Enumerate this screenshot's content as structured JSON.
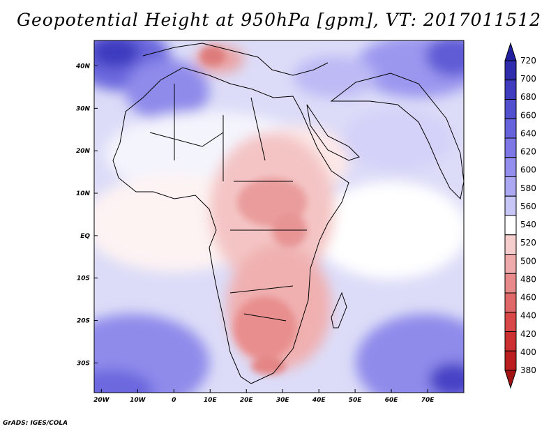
{
  "title": "Geopotential Height at 950hPa [gpm], VT: 2017011512",
  "credit": "GrADS: IGES/COLA",
  "map": {
    "region": "Africa",
    "lon_range": [
      -22,
      80
    ],
    "lat_range": [
      -37,
      46
    ],
    "x_ticks": [
      {
        "label": "20W",
        "value": -20
      },
      {
        "label": "10W",
        "value": -10
      },
      {
        "label": "0",
        "value": 0
      },
      {
        "label": "10E",
        "value": 10
      },
      {
        "label": "20E",
        "value": 20
      },
      {
        "label": "30E",
        "value": 30
      },
      {
        "label": "40E",
        "value": 40
      },
      {
        "label": "50E",
        "value": 50
      },
      {
        "label": "60E",
        "value": 60
      },
      {
        "label": "70E",
        "value": 70
      }
    ],
    "y_ticks": [
      {
        "label": "40N",
        "value": 40
      },
      {
        "label": "30N",
        "value": 30
      },
      {
        "label": "20N",
        "value": 20
      },
      {
        "label": "10N",
        "value": 10
      },
      {
        "label": "EQ",
        "value": 0
      },
      {
        "label": "10S",
        "value": -10
      },
      {
        "label": "20S",
        "value": -20
      },
      {
        "label": "30S",
        "value": -30
      }
    ]
  },
  "colorbar": {
    "levels": [
      "720",
      "700",
      "680",
      "660",
      "640",
      "620",
      "600",
      "580",
      "560",
      "540",
      "520",
      "500",
      "480",
      "460",
      "440",
      "420",
      "400",
      "380"
    ],
    "colors": [
      "#211f9c",
      "#2f2cae",
      "#3f3cc0",
      "#5250cf",
      "#6763dc",
      "#7d78e6",
      "#948fee",
      "#aca8f3",
      "#c8c6f7",
      "#ffffff",
      "#f6cdcd",
      "#efabab",
      "#e88a8a",
      "#e16868",
      "#d84848",
      "#cc3030",
      "#bb1e1e",
      "#a31212"
    ]
  }
}
